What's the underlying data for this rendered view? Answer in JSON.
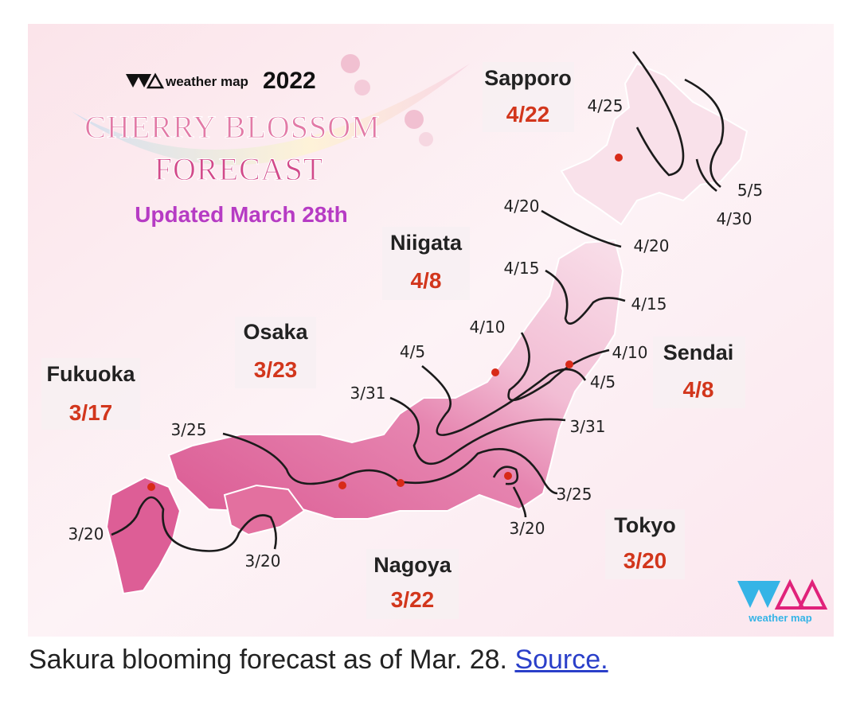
{
  "header": {
    "brand": "weather map",
    "year": "2022",
    "title_line1": "CHERRY BLOSSOM",
    "title_line2": "FORECAST",
    "updated": "Updated March 28th"
  },
  "cities": [
    {
      "name": "Sapporo",
      "date": "4/22"
    },
    {
      "name": "Niigata",
      "date": "4/8"
    },
    {
      "name": "Osaka",
      "date": "3/23"
    },
    {
      "name": "Fukuoka",
      "date": "3/17"
    },
    {
      "name": "Sendai",
      "date": "4/8"
    },
    {
      "name": "Tokyo",
      "date": "3/20"
    },
    {
      "name": "Nagoya",
      "date": "3/22"
    }
  ],
  "isolines": [
    "4/25",
    "5/5",
    "4/30",
    "4/20",
    "4/20",
    "4/15",
    "4/15",
    "4/10",
    "4/10",
    "4/5",
    "4/5",
    "3/31",
    "3/31",
    "3/25",
    "3/25",
    "3/20",
    "3/20",
    "3/20"
  ],
  "logo": {
    "text": "weather map",
    "colors": {
      "cyan": "#35b4e6",
      "magenta": "#e0227a"
    }
  },
  "colors": {
    "land_south": "#e0649a",
    "land_north": "#f8d8e6",
    "background": "#fbe9ee",
    "date_red": "#d2361c",
    "updated_purple": "#b63bc4"
  },
  "caption": {
    "text": "Sakura blooming forecast as of Mar. 28.",
    "link": "Source."
  }
}
